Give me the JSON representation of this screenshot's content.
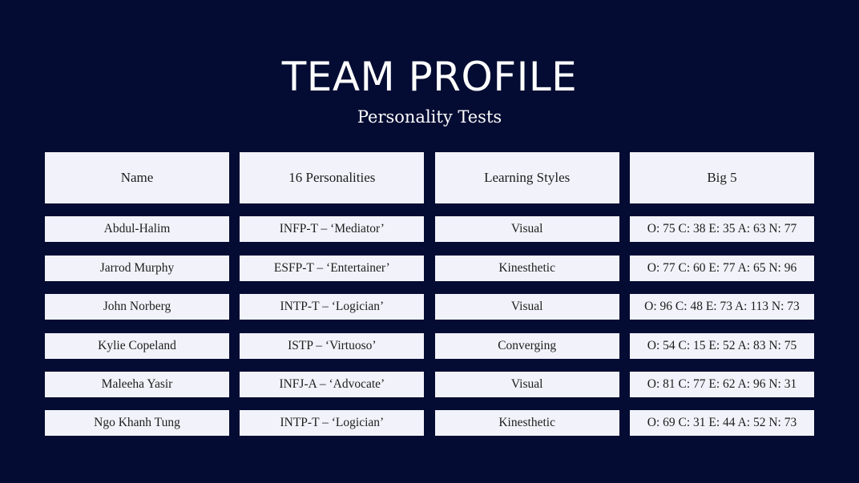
{
  "title": "TEAM PROFILE",
  "subtitle": "Personality Tests",
  "headers": [
    "Name",
    "16 Personalities",
    "Learning  Styles",
    "Big 5"
  ],
  "rows": [
    [
      "Abdul-Halim",
      "INFP-T – ‘Mediator’",
      "Visual",
      "O: 75 C: 38 E: 35 A: 63 N: 77"
    ],
    [
      "Jarrod Murphy",
      "ESFP-T – ‘Entertainer’",
      "Kinesthetic",
      "O: 77 C: 60 E: 77 A: 65 N: 96"
    ],
    [
      "John Norberg",
      "INTP-T – ‘Logician’",
      "Visual",
      "O: 96 C: 48 E: 73 A: 113 N: 73"
    ],
    [
      "Kylie Copeland",
      "ISTP – ‘Virtuoso’",
      "Converging",
      "O: 54 C: 15 E: 52 A: 83 N: 75"
    ],
    [
      "Maleeha Yasir",
      "INFJ-A – ‘Advocate’",
      "Visual",
      "O: 81 C: 77 E: 62 A: 96 N: 31"
    ],
    [
      "Ngo Khanh Tung",
      "INTP-T – ‘Logician’",
      "Kinesthetic",
      "O: 69 C: 31 E: 44 A: 52 N: 73"
    ]
  ]
}
